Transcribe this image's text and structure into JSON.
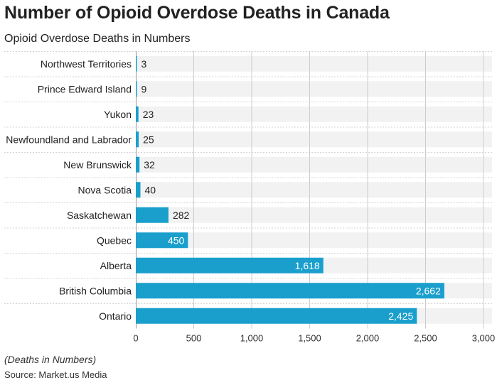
{
  "header": {
    "title": "Number of Opioid Overdose Deaths in Canada",
    "subtitle": "Opioid Overdose Deaths in Numbers"
  },
  "footer": {
    "note": "(Deaths in Numbers)",
    "source": "Source: Market.us Media"
  },
  "colors": {
    "bar": "#1a9fcd",
    "band": "#f2f2f2",
    "grid": "#cccccc",
    "label_dark": "#222222",
    "label_light": "#ffffff"
  },
  "chart_data": {
    "type": "bar",
    "orientation": "horizontal",
    "categories": [
      "Northwest Territories",
      "Prince Edward Island",
      "Yukon",
      "Newfoundland and Labrador",
      "New Brunswick",
      "Nova Scotia",
      "Saskatchewan",
      "Quebec",
      "Alberta",
      "British Columbia",
      "Ontario"
    ],
    "values": [
      3,
      9,
      23,
      25,
      32,
      40,
      282,
      450,
      1618,
      2662,
      2425
    ],
    "value_labels": [
      "3",
      "9",
      "23",
      "25",
      "32",
      "40",
      "282",
      "450",
      "1,618",
      "2,662",
      "2,425"
    ],
    "x_ticks": [
      0,
      500,
      1000,
      1500,
      2000,
      2500,
      3000
    ],
    "x_tick_labels": [
      "0",
      "500",
      "1,000",
      "1,500",
      "2,000",
      "2,500",
      "3,000"
    ],
    "xlim": [
      0,
      3000
    ],
    "grid": true
  }
}
